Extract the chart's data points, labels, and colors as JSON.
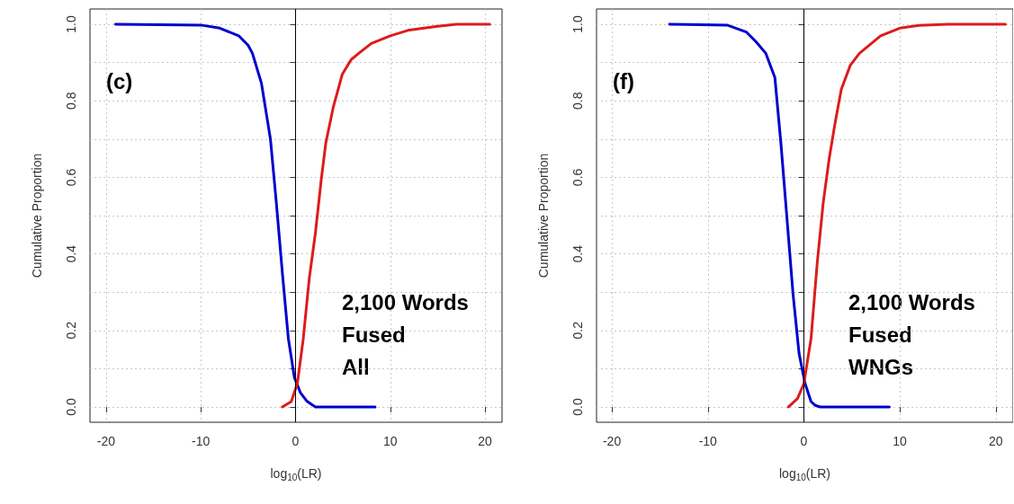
{
  "chart_data": [
    {
      "type": "line",
      "xlabel": "log$_{10}$(LR)",
      "ylabel": "Cumulative Proportion",
      "annotations": [
        "(c)",
        "2,100 Words\nFused\nAll"
      ],
      "xlim": [
        -21.7,
        21.8
      ],
      "ylim": [
        -0.04,
        1.04
      ],
      "xticks": [
        -20,
        -10,
        0,
        10,
        20
      ],
      "yticks": [
        {
          "value": 0,
          "label": "0.0"
        },
        {
          "value": 0.1,
          "label": null
        },
        0.2,
        {
          "value": 0.3,
          "label": null
        },
        0.4,
        {
          "value": 0.5,
          "label": null
        },
        0.6,
        {
          "value": 0.7,
          "label": null
        },
        0.8,
        {
          "value": 0.9,
          "label": null
        },
        {
          "value": 1,
          "label": "1.0"
        }
      ],
      "grid": true,
      "marker": "none",
      "line_style": "solid",
      "ref_lines": [
        {
          "axis": "x",
          "value": 0,
          "label": null,
          "color": "#000000"
        }
      ],
      "series": [
        {
          "color": "#0000cc",
          "x": [
            -19,
            -10,
            -8,
            -6,
            -5,
            -4.55,
            -3.6,
            -2.65,
            -2.02,
            -1.39,
            -0.76,
            -0.12,
            0.5,
            1.2,
            1.77,
            2.1,
            8.4
          ],
          "values": [
            1,
            0.998,
            0.99,
            0.97,
            0.945,
            0.924,
            0.846,
            0.7,
            0.532,
            0.35,
            0.179,
            0.077,
            0.038,
            0.015,
            0.005,
            0,
            0
          ]
        },
        {
          "color": "#dd1c1c",
          "x": [
            -1.4,
            -0.45,
            0.19,
            0.82,
            1.45,
            2.09,
            2.72,
            3.19,
            3.98,
            4.93,
            5.88,
            6.67,
            8,
            10,
            12,
            15,
            17,
            20.5
          ],
          "values": [
            0,
            0.014,
            0.061,
            0.179,
            0.336,
            0.453,
            0.595,
            0.689,
            0.783,
            0.869,
            0.908,
            0.924,
            0.95,
            0.97,
            0.985,
            0.995,
            1,
            1
          ]
        }
      ]
    },
    {
      "type": "line",
      "xlabel": "log$_{10}$(LR)",
      "ylabel": "Cumulative Proportion",
      "annotations": [
        "(f)",
        "2,100 Words\nFused\nWNGs"
      ],
      "xlim": [
        -21.6,
        21.8
      ],
      "ylim": [
        -0.04,
        1.04
      ],
      "xticks": [
        -20,
        -10,
        0,
        10,
        20
      ],
      "yticks": [
        {
          "value": 0,
          "label": "0.0"
        },
        {
          "value": 0.1,
          "label": null
        },
        0.2,
        {
          "value": 0.3,
          "label": null
        },
        0.4,
        {
          "value": 0.5,
          "label": null
        },
        0.6,
        {
          "value": 0.7,
          "label": null
        },
        0.8,
        {
          "value": 0.9,
          "label": null
        },
        {
          "value": 1,
          "label": "1.0"
        }
      ],
      "grid": true,
      "marker": "none",
      "line_style": "solid",
      "ref_lines": [
        {
          "axis": "x",
          "value": 0,
          "label": null,
          "color": "#000000"
        }
      ],
      "series": [
        {
          "color": "#0000cc",
          "x": [
            -14,
            -8,
            -6,
            -5,
            -3.96,
            -3.02,
            -2.39,
            -1.76,
            -1.13,
            -0.5,
            0.13,
            0.75,
            1.2,
            1.7,
            8.9
          ],
          "values": [
            1,
            0.998,
            0.98,
            0.955,
            0.924,
            0.861,
            0.689,
            0.493,
            0.296,
            0.14,
            0.061,
            0.014,
            0.004,
            0,
            0
          ]
        },
        {
          "color": "#dd1c1c",
          "x": [
            -1.6,
            -0.66,
            0,
            0.75,
            1.39,
            2.01,
            2.64,
            3.27,
            3.9,
            4.84,
            5.79,
            8,
            10,
            12,
            15,
            21
          ],
          "values": [
            0,
            0.022,
            0.061,
            0.179,
            0.375,
            0.532,
            0.649,
            0.744,
            0.83,
            0.893,
            0.924,
            0.97,
            0.99,
            0.997,
            1,
            1
          ]
        }
      ]
    }
  ]
}
